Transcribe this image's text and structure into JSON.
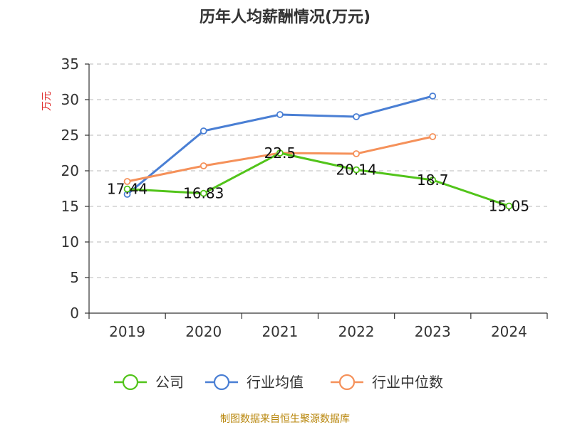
{
  "page": {
    "title": "历年人均薪酬情况(万元)",
    "source": "制图数据来自恒生聚源数据库"
  },
  "chart_data": {
    "type": "line",
    "title": "历年人均薪酬情况(万元)",
    "xlabel": "",
    "ylabel": "万元",
    "categories": [
      "2019",
      "2020",
      "2021",
      "2022",
      "2023",
      "2024"
    ],
    "ylim": [
      0,
      35
    ],
    "yticks": [
      0,
      5,
      10,
      15,
      20,
      25,
      30,
      35
    ],
    "grid": true,
    "legend_position": "bottom",
    "series": [
      {
        "name": "公司",
        "color": "#52c41a",
        "values": [
          17.44,
          16.83,
          22.5,
          20.14,
          18.7,
          15.05
        ],
        "labels": [
          "17.44",
          "16.83",
          "22.5",
          "20.14",
          "18.7",
          "15.05"
        ]
      },
      {
        "name": "行业均值",
        "color": "#4a7fd4",
        "values": [
          16.7,
          25.6,
          27.9,
          27.6,
          30.5,
          null
        ]
      },
      {
        "name": "行业中位数",
        "color": "#f5915a",
        "values": [
          18.5,
          20.7,
          22.5,
          22.4,
          24.8,
          null
        ]
      }
    ]
  }
}
